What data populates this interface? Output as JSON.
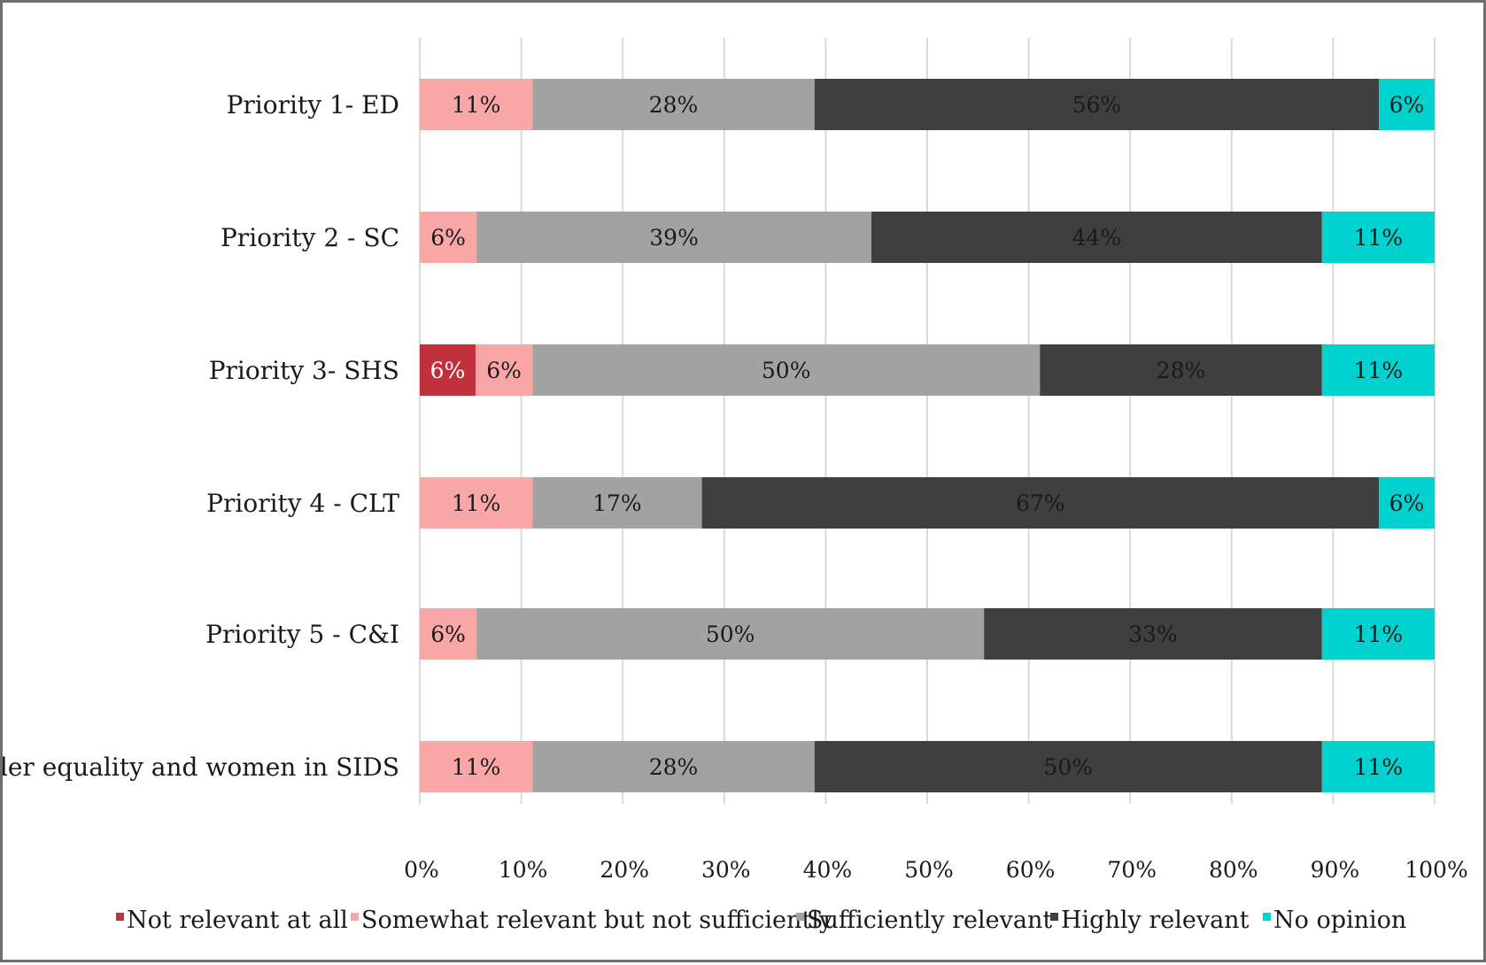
{
  "chart_data": {
    "type": "bar",
    "orientation": "horizontal",
    "stacked": true,
    "categories": [
      "Priority 1- ED",
      "Priority 2 - SC",
      "Priority 3- SHS",
      "Priority 4 - CLT",
      "Priority 5 - C&I",
      "Gender equality and women in SIDS"
    ],
    "series": [
      {
        "name": "Not relevant at all",
        "color": "#c0313d",
        "label_color": "#ffffff",
        "values": [
          0,
          0,
          5.5,
          0,
          0,
          0
        ],
        "labels": [
          "",
          "",
          "6%",
          "",
          "",
          ""
        ]
      },
      {
        "name": "Somewhat relevant but not sufficiently",
        "color": "#f9a6a6",
        "label_color": "#1a1a1a",
        "values": [
          11.1,
          5.6,
          5.6,
          11.1,
          5.6,
          11.1
        ],
        "labels": [
          "11%",
          "6%",
          "6%",
          "11%",
          "6%",
          "11%"
        ]
      },
      {
        "name": "Sufficiently relevant",
        "color": "#a2a2a2",
        "label_color": "#1a1a1a",
        "values": [
          27.8,
          38.9,
          50,
          16.7,
          50,
          27.8
        ],
        "labels": [
          "28%",
          "39%",
          "50%",
          "17%",
          "50%",
          "28%"
        ]
      },
      {
        "name": "Highly relevant",
        "color": "#3f3f3f",
        "label_color": "#1a1a1a",
        "values": [
          55.6,
          44.4,
          27.8,
          66.7,
          33.3,
          50
        ],
        "labels": [
          "56%",
          "44%",
          "28%",
          "67%",
          "33%",
          "50%"
        ]
      },
      {
        "name": "No opinion",
        "color": "#00d3cf",
        "label_color": "#1a1a1a",
        "values": [
          5.5,
          11.1,
          11.1,
          5.5,
          11.1,
          11.1
        ],
        "labels": [
          "6%",
          "11%",
          "11%",
          "6%",
          "11%",
          "11%"
        ]
      }
    ],
    "xlim": [
      0,
      100
    ],
    "x_ticks": [
      "0%",
      "10%",
      "20%",
      "30%",
      "40%",
      "50%",
      "60%",
      "70%",
      "80%",
      "90%",
      "100%"
    ],
    "grid": true,
    "legend": "bottom"
  }
}
